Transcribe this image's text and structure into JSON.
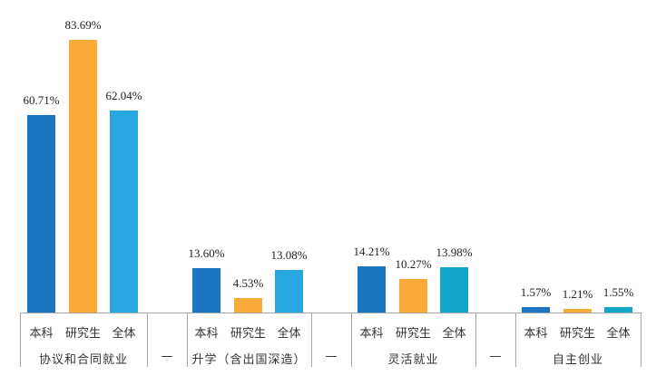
{
  "chart_data": {
    "type": "bar",
    "title": "",
    "xlabel": "",
    "ylabel": "",
    "ylim": [
      0,
      100
    ],
    "grid": false,
    "legend": "none (sub-category labels under each bar group)",
    "categories": [
      "协议和合同就业",
      "升学（含出国深造）",
      "灵活就业",
      "自主创业"
    ],
    "separator_label": "—",
    "series": [
      {
        "name": "本科",
        "color": "#1a76c0",
        "values": [
          60.71,
          13.6,
          14.21,
          1.57
        ],
        "labels": [
          "60.71%",
          "13.60%",
          "14.21%",
          "1.57%"
        ]
      },
      {
        "name": "研究生",
        "color": "#f9ab39",
        "values": [
          83.69,
          4.53,
          10.27,
          1.21
        ],
        "labels": [
          "83.69%",
          "4.53%",
          "10.27%",
          "1.21%"
        ]
      },
      {
        "name": "全体",
        "colors": [
          "#29a6e0",
          "#29a6e0",
          "#12a7c8",
          "#12a7c8"
        ],
        "values": [
          62.04,
          13.08,
          13.98,
          1.55
        ],
        "labels": [
          "62.04%",
          "13.08%",
          "13.98%",
          "1.55%"
        ]
      }
    ]
  }
}
